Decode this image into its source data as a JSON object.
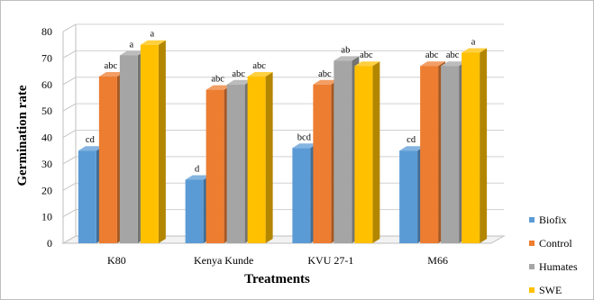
{
  "chart_data": {
    "type": "bar",
    "title": "",
    "xlabel": "Treatments",
    "ylabel": "Germination rate",
    "ylim": [
      0,
      80
    ],
    "yticks": [
      0,
      10,
      20,
      30,
      40,
      50,
      60,
      70,
      80
    ],
    "categories": [
      "K80",
      "Kenya Kunde",
      "KVU 27-1",
      "M66"
    ],
    "series": [
      {
        "name": "Biofix",
        "color": "#5b9bd5",
        "values": [
          35,
          24,
          36,
          35
        ],
        "labels": [
          "cd",
          "d",
          "bcd",
          "cd"
        ]
      },
      {
        "name": "Control",
        "color": "#ed7d31",
        "values": [
          63,
          58,
          60,
          67
        ],
        "labels": [
          "abc",
          "abc",
          "abc",
          "abc"
        ]
      },
      {
        "name": "Humates",
        "color": "#a5a5a5",
        "values": [
          71,
          60,
          69,
          67
        ],
        "labels": [
          "a",
          "abc",
          "ab",
          "abc"
        ]
      },
      {
        "name": "SWE",
        "color": "#ffc000",
        "values": [
          75,
          63,
          67,
          72
        ],
        "labels": [
          "a",
          "abc",
          "abc",
          "a"
        ]
      }
    ],
    "legend_position": "right",
    "grid": true,
    "style": "3d"
  }
}
